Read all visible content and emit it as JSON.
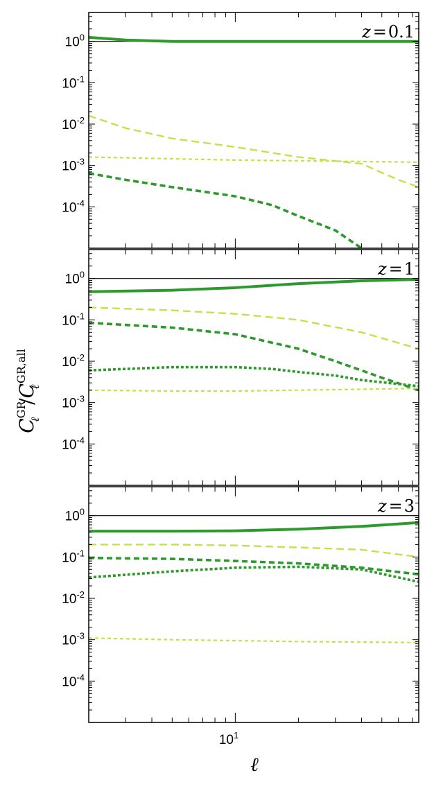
{
  "figure": {
    "xlabel": "ℓ",
    "ylabel": {
      "numerator_symbol": "C",
      "numerator_sub": "ℓ",
      "numerator_sup": "GR",
      "separator": "/",
      "denominator_symbol": "C",
      "denominator_sub": "ℓ",
      "denominator_sup": "GR,all"
    },
    "x_tick_labels": [
      {
        "base": "10",
        "exp": "1"
      }
    ],
    "y_tick_labels": [
      {
        "base": "10",
        "exp": "0"
      },
      {
        "base": "10",
        "exp": "-1"
      },
      {
        "base": "10",
        "exp": "-2"
      },
      {
        "base": "10",
        "exp": "-3"
      },
      {
        "base": "10",
        "exp": "-4"
      }
    ],
    "colors": {
      "dark_green": "#2e9a2e",
      "light_green": "#c5e04a",
      "reference": "#000000"
    }
  },
  "chart_data": [
    {
      "type": "line",
      "panel_label": "z = 0.1",
      "panel_label_var": "z",
      "panel_label_value": "0.1",
      "x_scale": "log",
      "y_scale": "log",
      "xlim": [
        2,
        75
      ],
      "ylim": [
        1e-05,
        5
      ],
      "xlabel": "ℓ",
      "x_ticks": [
        10
      ],
      "y_ticks": [
        1,
        0.1,
        0.01,
        0.001,
        0.0001
      ],
      "series": [
        {
          "style": "reference",
          "color": "#000000",
          "x": [
            2,
            75
          ],
          "y": [
            1,
            1
          ]
        },
        {
          "style": "solid",
          "color": "#2e9a2e",
          "x": [
            2,
            3,
            5,
            10,
            20,
            40,
            75
          ],
          "y": [
            1.25,
            1.08,
            1.0,
            1.0,
            1.0,
            1.0,
            1.0
          ]
        },
        {
          "style": "long-dash",
          "color": "#c5e04a",
          "x": [
            2,
            3,
            5,
            10,
            20,
            40,
            60,
            75
          ],
          "y": [
            0.016,
            0.008,
            0.0045,
            0.0028,
            0.0016,
            0.0011,
            0.00045,
            0.0003
          ]
        },
        {
          "style": "short-dash",
          "color": "#c5e04a",
          "x": [
            2,
            5,
            10,
            20,
            40,
            75
          ],
          "y": [
            0.0016,
            0.00145,
            0.00135,
            0.0013,
            0.00125,
            0.0012
          ]
        },
        {
          "style": "medium-dash",
          "color": "#2e9a2e",
          "x": [
            2,
            3,
            5,
            10,
            15,
            20,
            30,
            40,
            50
          ],
          "y": [
            0.00065,
            0.00045,
            0.0003,
            0.00018,
            0.00011,
            6e-05,
            2.7e-05,
            1e-05,
            4.5e-06
          ]
        }
      ]
    },
    {
      "type": "line",
      "panel_label": "z = 1",
      "panel_label_var": "z",
      "panel_label_value": "1",
      "x_scale": "log",
      "y_scale": "log",
      "xlim": [
        2,
        75
      ],
      "ylim": [
        1e-05,
        5
      ],
      "xlabel": "ℓ",
      "x_ticks": [
        10
      ],
      "y_ticks": [
        1,
        0.1,
        0.01,
        0.001,
        0.0001
      ],
      "series": [
        {
          "style": "reference",
          "color": "#000000",
          "x": [
            2,
            75
          ],
          "y": [
            1,
            1
          ]
        },
        {
          "style": "solid",
          "color": "#2e9a2e",
          "x": [
            2,
            5,
            10,
            20,
            40,
            75
          ],
          "y": [
            0.48,
            0.52,
            0.6,
            0.75,
            0.88,
            0.95
          ]
        },
        {
          "style": "long-dash",
          "color": "#c5e04a",
          "x": [
            2,
            5,
            10,
            20,
            40,
            75
          ],
          "y": [
            0.2,
            0.17,
            0.14,
            0.1,
            0.05,
            0.02
          ]
        },
        {
          "style": "medium-dash",
          "color": "#2e9a2e",
          "x": [
            2,
            5,
            10,
            20,
            30,
            40,
            50,
            75
          ],
          "y": [
            0.085,
            0.065,
            0.045,
            0.02,
            0.01,
            0.006,
            0.004,
            0.002
          ]
        },
        {
          "style": "dotted",
          "color": "#2e9a2e",
          "x": [
            2,
            5,
            10,
            15,
            20,
            30,
            40,
            75
          ],
          "y": [
            0.006,
            0.0072,
            0.0072,
            0.0065,
            0.0055,
            0.0045,
            0.0035,
            0.0025
          ]
        },
        {
          "style": "short-dash",
          "color": "#c5e04a",
          "x": [
            2,
            5,
            10,
            20,
            40,
            75
          ],
          "y": [
            0.002,
            0.0019,
            0.0019,
            0.002,
            0.0021,
            0.0022
          ]
        }
      ]
    },
    {
      "type": "line",
      "panel_label": "z = 3",
      "panel_label_var": "z",
      "panel_label_value": "3",
      "x_scale": "log",
      "y_scale": "log",
      "xlim": [
        2,
        75
      ],
      "ylim": [
        1e-05,
        5
      ],
      "xlabel": "ℓ",
      "x_ticks": [
        10
      ],
      "y_ticks": [
        1,
        0.1,
        0.01,
        0.001,
        0.0001
      ],
      "series": [
        {
          "style": "reference",
          "color": "#000000",
          "x": [
            2,
            75
          ],
          "y": [
            1,
            1
          ]
        },
        {
          "style": "solid",
          "color": "#2e9a2e",
          "x": [
            2,
            5,
            10,
            20,
            40,
            75
          ],
          "y": [
            0.42,
            0.42,
            0.43,
            0.47,
            0.55,
            0.68
          ]
        },
        {
          "style": "long-dash",
          "color": "#c5e04a",
          "x": [
            2,
            5,
            10,
            20,
            40,
            75
          ],
          "y": [
            0.2,
            0.2,
            0.19,
            0.17,
            0.15,
            0.1
          ]
        },
        {
          "style": "medium-dash",
          "color": "#2e9a2e",
          "x": [
            2,
            5,
            10,
            20,
            40,
            75
          ],
          "y": [
            0.095,
            0.09,
            0.08,
            0.07,
            0.055,
            0.038
          ]
        },
        {
          "style": "dotted",
          "color": "#2e9a2e",
          "x": [
            2,
            5,
            10,
            20,
            40,
            75
          ],
          "y": [
            0.032,
            0.045,
            0.055,
            0.058,
            0.05,
            0.025
          ]
        },
        {
          "style": "short-dash",
          "color": "#c5e04a",
          "x": [
            2,
            5,
            10,
            20,
            40,
            75
          ],
          "y": [
            0.0011,
            0.001,
            0.00095,
            0.0009,
            0.00088,
            0.00085
          ]
        }
      ]
    }
  ]
}
